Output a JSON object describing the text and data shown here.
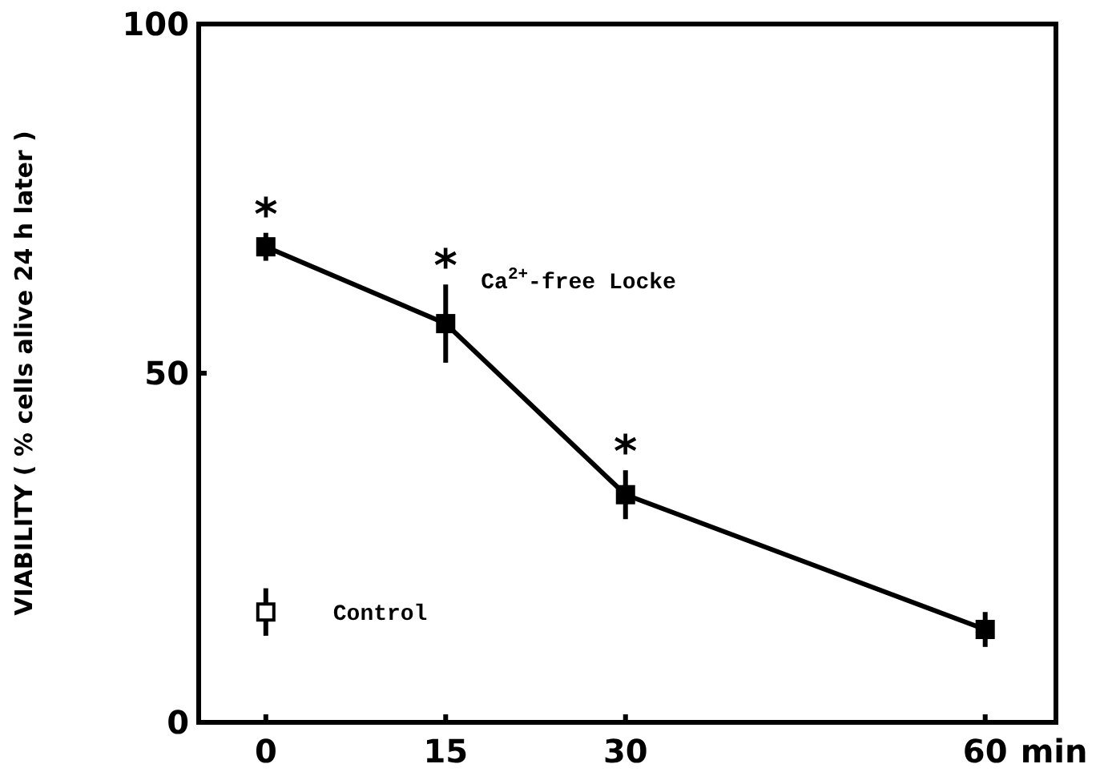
{
  "chart_data": {
    "type": "line",
    "xlabel": "min",
    "ylabel": "VIABILITY ( % cells alive 24 h later )",
    "x": [
      0,
      15,
      30,
      60
    ],
    "xlim": [
      -5.6,
      65.9
    ],
    "xticks": [
      0,
      15,
      30,
      60
    ],
    "ylim": [
      0,
      100
    ],
    "yticks": [
      0,
      50,
      100
    ],
    "series": [
      {
        "name": "Ca$^{2+}$-free Locke",
        "color": "#000000",
        "values": [
          68.1,
          57.1,
          32.6,
          13.3
        ],
        "errors": [
          2,
          5.6,
          3.5,
          2.5
        ],
        "marker": "square"
      },
      {
        "name": "Control",
        "type": "scatter",
        "color": "#ffffff",
        "x": [
          0
        ],
        "values": [
          15.8
        ],
        "errors": [
          3.4
        ],
        "marker": "square"
      }
    ],
    "annotations": [
      {
        "text": "*",
        "x": 0,
        "y": 68.1
      },
      {
        "text": "*",
        "x": 15,
        "y": 57.1
      },
      {
        "text": "*",
        "x": 30,
        "y": 32.6
      }
    ]
  }
}
